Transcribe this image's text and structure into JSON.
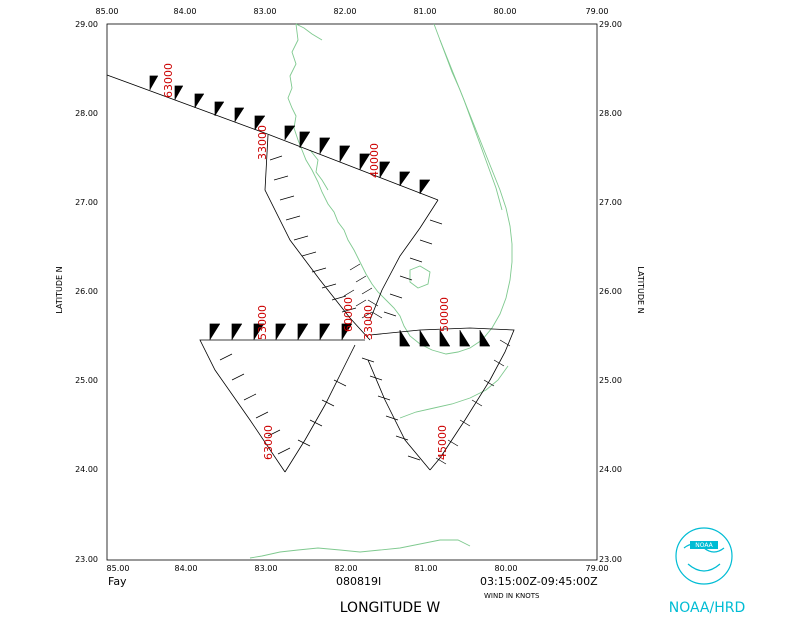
{
  "map": {
    "x_axis": {
      "title": "LONGITUDE   W",
      "ticks": [
        "85.00",
        "84.00",
        "83.00",
        "82.00",
        "81.00",
        "80.00",
        "79.00"
      ]
    },
    "y_axis": {
      "left_title": "LATITUDE   N",
      "right_title": "LATITUDE   N",
      "ticks": [
        "23.00",
        "24.00",
        "25.00",
        "26.00",
        "27.00",
        "28.00",
        "29.00"
      ]
    },
    "storm_name": "Fay",
    "date_code": "080819I",
    "time_range": "03:15:00Z-09:45:00Z",
    "units_note": "WIND IN KNOTS",
    "logo_label": "NOAA/HRD",
    "logo_mark": "NOAA",
    "altitude_labels": [
      "63000",
      "33000",
      "40000",
      "53000",
      "50000",
      "63000",
      "45000",
      "60000",
      "33000"
    ],
    "colors": {
      "coastline": "#7fc98f",
      "track": "#000000",
      "altitude": "#cc0000",
      "logo": "#00bcd4"
    }
  }
}
